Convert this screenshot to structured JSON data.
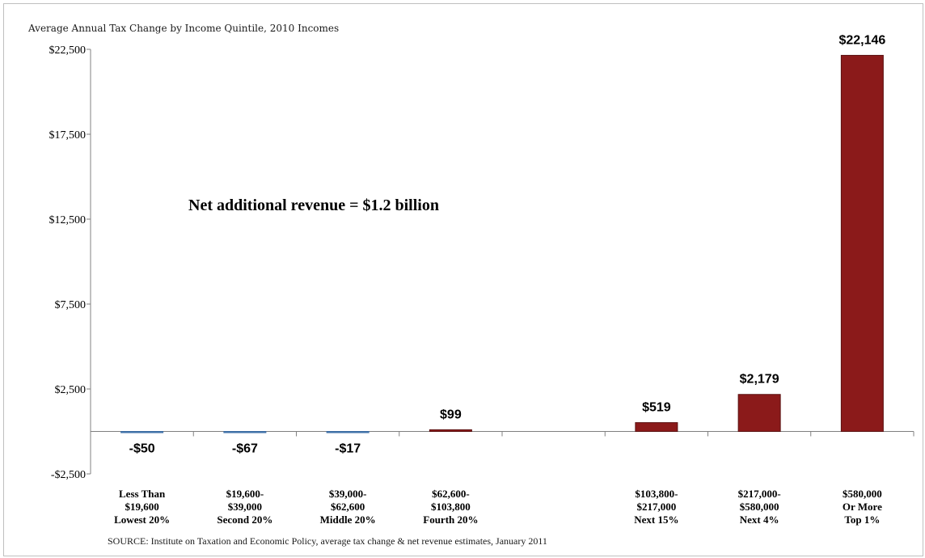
{
  "chart_data": {
    "type": "bar",
    "title": "Average Annual Tax Change by Income Quintile, 2010 Incomes",
    "annotation": "Net additional revenue = $1.2 billion",
    "source": "SOURCE: Institute on Taxation and Economic Policy, average tax change & net revenue estimates, January 2011",
    "ylim": [
      -2500,
      22500
    ],
    "yticks": [
      22500,
      17500,
      12500,
      7500,
      2500,
      -2500
    ],
    "ytick_labels": [
      "$22,500",
      "$17,500",
      "$12,500",
      "$7,500",
      "$2,500",
      "-$2,500"
    ],
    "categories": [
      [
        "Less Than",
        "$19,600",
        "Lowest 20%"
      ],
      [
        "$19,600-",
        "$39,000",
        "Second 20%"
      ],
      [
        "$39,000-",
        "$62,600",
        "Middle 20%"
      ],
      [
        "$62,600-",
        "$103,800",
        "Fourth 20%"
      ],
      [
        "",
        "",
        ""
      ],
      [
        "$103,800-",
        "$217,000",
        "Next 15%"
      ],
      [
        "$217,000-",
        "$580,000",
        "Next 4%"
      ],
      [
        "$580,000",
        "Or More",
        "Top 1%"
      ]
    ],
    "values": [
      -50,
      -67,
      -17,
      99,
      null,
      519,
      2179,
      22146
    ],
    "data_labels": [
      "-$50",
      "-$67",
      "-$17",
      "$99",
      "",
      "$519",
      "$2,179",
      "$22,146"
    ],
    "colors": {
      "positive": "#8b1a1a",
      "negative": "#4f81bd"
    },
    "grid": false,
    "legend": "none"
  }
}
